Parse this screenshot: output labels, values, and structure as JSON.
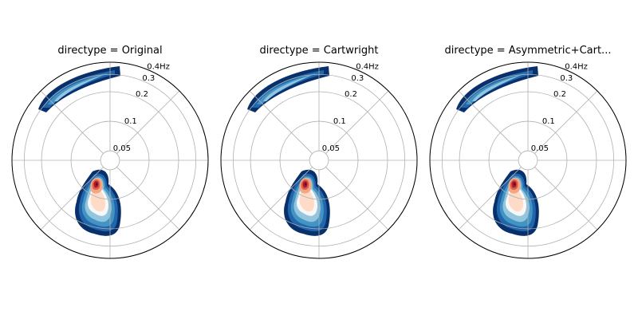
{
  "chart_data": [
    {
      "type": "polar-density",
      "title": "directype = Original",
      "rscale": "log",
      "rlim": [
        0.04,
        0.4
      ],
      "rticks": [
        0.05,
        0.1,
        0.2,
        0.3,
        {
          "value": 0.4,
          "label": "0.4Hz"
        }
      ],
      "grid": true
    },
    {
      "type": "polar-density",
      "title": "directype = Cartwright",
      "rscale": "log",
      "rlim": [
        0.04,
        0.4
      ],
      "rticks": [
        0.05,
        0.1,
        0.2,
        0.3,
        {
          "value": 0.4,
          "label": "0.4Hz"
        }
      ],
      "grid": true
    },
    {
      "type": "polar-density",
      "title": "directype = Asymmetric+Cart...",
      "rscale": "log",
      "rlim": [
        0.04,
        0.4
      ],
      "rticks": [
        0.05,
        0.1,
        0.2,
        0.3,
        {
          "value": 0.4,
          "label": "0.4Hz"
        }
      ],
      "grid": true
    }
  ]
}
